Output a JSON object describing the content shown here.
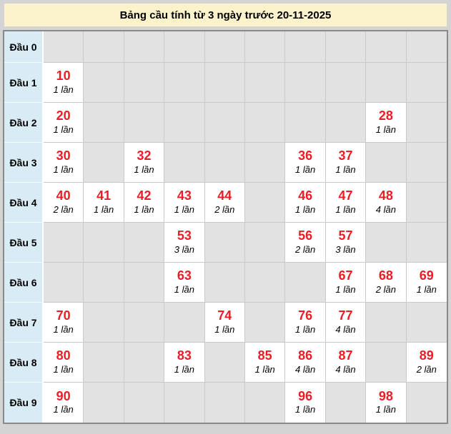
{
  "title": "Bảng cầu tính từ 3 ngày trước 20-11-2025",
  "chart_data": {
    "type": "table",
    "title": "Bảng cầu tính từ 3 ngày trước 20-11-2025",
    "row_labels": [
      "Đầu 0",
      "Đầu 1",
      "Đầu 2",
      "Đầu 3",
      "Đầu 4",
      "Đầu 5",
      "Đầu 6",
      "Đầu 7",
      "Đầu 8",
      "Đầu 9"
    ],
    "columns_per_row": 10,
    "unit_word": "lần",
    "rows": [
      {
        "label": "Đầu 0",
        "cells": [
          null,
          null,
          null,
          null,
          null,
          null,
          null,
          null,
          null,
          null
        ]
      },
      {
        "label": "Đầu 1",
        "cells": [
          {
            "number": "10",
            "times": "1 lần"
          },
          null,
          null,
          null,
          null,
          null,
          null,
          null,
          null,
          null
        ]
      },
      {
        "label": "Đầu 2",
        "cells": [
          {
            "number": "20",
            "times": "1 lần"
          },
          null,
          null,
          null,
          null,
          null,
          null,
          null,
          {
            "number": "28",
            "times": "1 lần"
          },
          null
        ]
      },
      {
        "label": "Đầu 3",
        "cells": [
          {
            "number": "30",
            "times": "1 lần"
          },
          null,
          {
            "number": "32",
            "times": "1 lần"
          },
          null,
          null,
          null,
          {
            "number": "36",
            "times": "1 lần"
          },
          {
            "number": "37",
            "times": "1 lần"
          },
          null,
          null
        ]
      },
      {
        "label": "Đầu 4",
        "cells": [
          {
            "number": "40",
            "times": "2 lần"
          },
          {
            "number": "41",
            "times": "1 lần"
          },
          {
            "number": "42",
            "times": "1 lần"
          },
          {
            "number": "43",
            "times": "1 lần"
          },
          {
            "number": "44",
            "times": "2 lần"
          },
          null,
          {
            "number": "46",
            "times": "1 lần"
          },
          {
            "number": "47",
            "times": "1 lần"
          },
          {
            "number": "48",
            "times": "4 lần"
          },
          null
        ]
      },
      {
        "label": "Đầu 5",
        "cells": [
          null,
          null,
          null,
          {
            "number": "53",
            "times": "3 lần"
          },
          null,
          null,
          {
            "number": "56",
            "times": "2 lần"
          },
          {
            "number": "57",
            "times": "3 lần"
          },
          null,
          null
        ]
      },
      {
        "label": "Đầu 6",
        "cells": [
          null,
          null,
          null,
          {
            "number": "63",
            "times": "1 lần"
          },
          null,
          null,
          null,
          {
            "number": "67",
            "times": "1 lần"
          },
          {
            "number": "68",
            "times": "2 lần"
          },
          {
            "number": "69",
            "times": "1 lần"
          }
        ]
      },
      {
        "label": "Đầu 7",
        "cells": [
          {
            "number": "70",
            "times": "1 lần"
          },
          null,
          null,
          null,
          {
            "number": "74",
            "times": "1 lần"
          },
          null,
          {
            "number": "76",
            "times": "1 lần"
          },
          {
            "number": "77",
            "times": "4 lần"
          },
          null,
          null
        ]
      },
      {
        "label": "Đầu 8",
        "cells": [
          {
            "number": "80",
            "times": "1 lần"
          },
          null,
          null,
          {
            "number": "83",
            "times": "1 lần"
          },
          null,
          {
            "number": "85",
            "times": "1 lần"
          },
          {
            "number": "86",
            "times": "4 lần"
          },
          {
            "number": "87",
            "times": "4 lần"
          },
          null,
          {
            "number": "89",
            "times": "2 lần"
          }
        ]
      },
      {
        "label": "Đầu 9",
        "cells": [
          {
            "number": "90",
            "times": "1 lần"
          },
          null,
          null,
          null,
          null,
          null,
          {
            "number": "96",
            "times": "1 lần"
          },
          null,
          {
            "number": "98",
            "times": "1 lần"
          },
          null
        ]
      }
    ]
  },
  "colors": {
    "page_bg": "#d4d4d4",
    "title_bg": "#fcf3cd",
    "title_text": "#000000",
    "label_bg": "#d9ecf6",
    "filled_bg": "#ffffff",
    "empty_bg": "#e2e2e2",
    "number_red": "#ee1c25",
    "grid_border": "#c9c9c9",
    "outer_border": "#8a8a8a"
  }
}
